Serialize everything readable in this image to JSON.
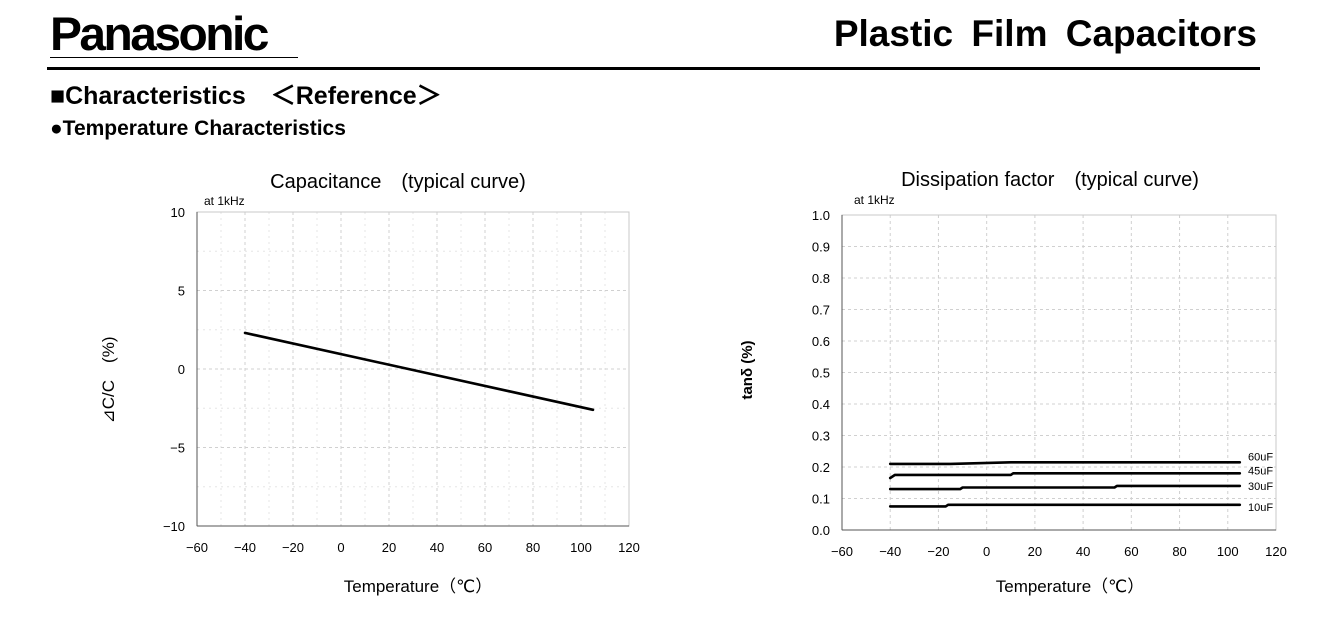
{
  "header": {
    "logo": "Panasonic",
    "title": "Plastic Film Capacitors"
  },
  "section": {
    "title": "■Characteristics　＜Reference＞",
    "subtitle": "●Temperature Characteristics"
  },
  "chart_data": [
    {
      "type": "line",
      "title": "Capacitance　(typical curve)",
      "note": "at 1kHz",
      "xlabel": "Temperature（℃）",
      "ylabel": "⊿C/C　(%)",
      "xlim": [
        -60,
        120
      ],
      "ylim": [
        -10,
        10
      ],
      "x_ticks": [
        "−60",
        "−40",
        "−20",
        "0",
        "20",
        "40",
        "60",
        "80",
        "100",
        "120"
      ],
      "y_ticks": [
        "10",
        "5",
        "0",
        "−5",
        "−10"
      ],
      "grid": true,
      "series": [
        {
          "x": [
            -40,
            105
          ],
          "y": [
            2.3,
            -2.6
          ]
        }
      ]
    },
    {
      "type": "line",
      "title": "Dissipation factor　(typical curve)",
      "note": "at 1kHz",
      "xlabel": "Temperature（℃）",
      "ylabel": "tanδ (%)",
      "xlim": [
        -60,
        120
      ],
      "ylim": [
        0,
        1.0
      ],
      "x_ticks": [
        "−60",
        "−40",
        "−20",
        "0",
        "20",
        "40",
        "60",
        "80",
        "100",
        "120"
      ],
      "y_ticks": [
        "1.0",
        "0.9",
        "0.8",
        "0.7",
        "0.6",
        "0.5",
        "0.4",
        "0.3",
        "0.2",
        "0.1",
        "0.0"
      ],
      "grid": true,
      "series": [
        {
          "name": "60uF",
          "x": [
            -40,
            -15,
            10,
            105
          ],
          "y": [
            0.21,
            0.21,
            0.215,
            0.215
          ]
        },
        {
          "name": "45uF",
          "x": [
            -40,
            -38,
            10,
            11,
            105
          ],
          "y": [
            0.165,
            0.175,
            0.175,
            0.18,
            0.18
          ]
        },
        {
          "name": "30uF",
          "x": [
            -40,
            -11,
            -10,
            53,
            54,
            105
          ],
          "y": [
            0.13,
            0.13,
            0.135,
            0.135,
            0.14,
            0.14
          ]
        },
        {
          "name": "10uF",
          "x": [
            -40,
            -17,
            -16,
            105
          ],
          "y": [
            0.075,
            0.075,
            0.08,
            0.08
          ]
        }
      ]
    }
  ]
}
